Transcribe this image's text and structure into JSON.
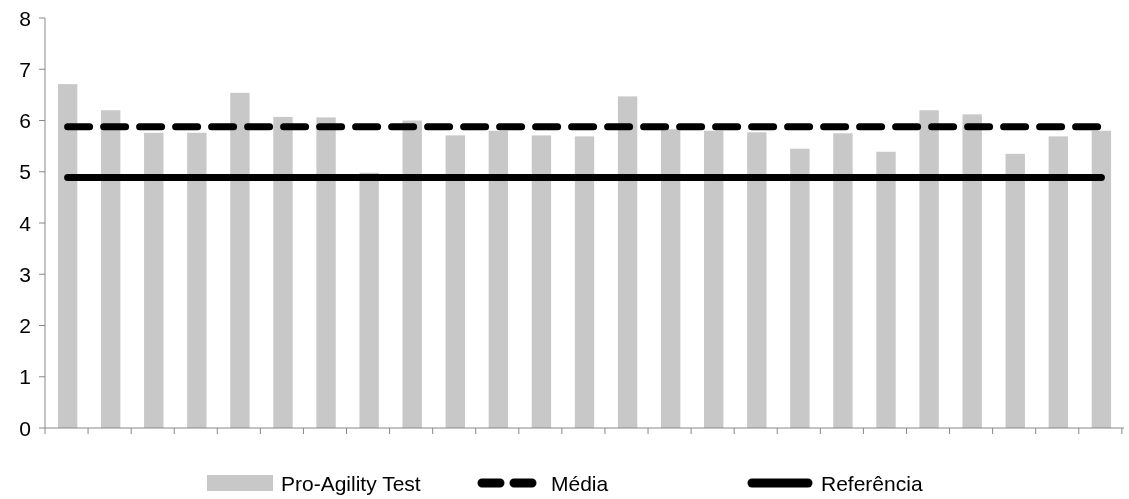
{
  "chart_data": {
    "type": "bar",
    "categories": [
      null,
      null,
      null,
      null,
      null,
      null,
      null,
      null,
      null,
      null,
      null,
      null,
      null,
      null,
      null,
      null,
      null,
      null,
      null,
      null,
      null,
      null,
      null,
      null,
      null
    ],
    "series": [
      {
        "name": "Pro-Agility Test",
        "color": "#c8c8c8",
        "values": [
          6.71,
          6.2,
          5.76,
          5.76,
          6.54,
          6.07,
          6.06,
          4.98,
          6.0,
          5.71,
          5.8,
          5.71,
          5.69,
          6.47,
          5.83,
          5.8,
          5.77,
          5.45,
          5.75,
          5.39,
          6.2,
          6.12,
          5.35,
          5.69,
          5.8
        ]
      },
      {
        "name": "Média",
        "type": "line",
        "color": "#000000",
        "line_style": "dashed",
        "values": [
          5.88,
          5.88,
          5.88,
          5.88,
          5.88,
          5.88,
          5.88,
          5.88,
          5.88,
          5.88,
          5.88,
          5.88,
          5.88,
          5.88,
          5.88,
          5.88,
          5.88,
          5.88,
          5.88,
          5.88,
          5.88,
          5.88,
          5.88,
          5.88,
          5.88
        ]
      },
      {
        "name": "Referência",
        "type": "line",
        "color": "#000000",
        "line_style": "solid",
        "values": [
          4.89,
          4.89,
          4.89,
          4.89,
          4.89,
          4.89,
          4.89,
          4.89,
          4.89,
          4.89,
          4.89,
          4.89,
          4.89,
          4.89,
          4.89,
          4.89,
          4.89,
          4.89,
          4.89,
          4.89,
          4.89,
          4.89,
          4.89,
          4.89,
          4.89
        ]
      }
    ],
    "ylim": [
      0,
      8
    ],
    "yticks": [
      0,
      1,
      2,
      3,
      4,
      5,
      6,
      7,
      8
    ],
    "legend": "bottom"
  }
}
